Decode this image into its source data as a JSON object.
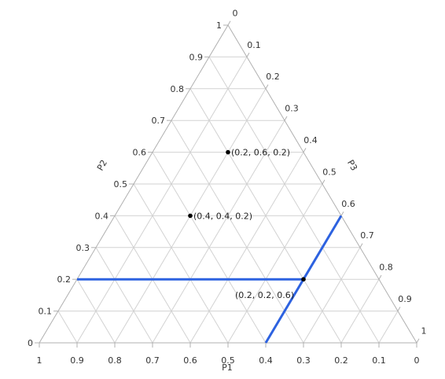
{
  "chart_data": {
    "type": "ternary",
    "axes": [
      {
        "name": "P1",
        "label": "P1",
        "ticks": [
          "1",
          "0.9",
          "0.8",
          "0.7",
          "0.6",
          "0.5",
          "0.4",
          "0.3",
          "0.2",
          "0.1",
          "0"
        ]
      },
      {
        "name": "P2",
        "label": "P2",
        "ticks": [
          "0",
          "0.1",
          "0.2",
          "0.3",
          "0.4",
          "0.5",
          "0.6",
          "0.7",
          "0.8",
          "0.9",
          "1"
        ]
      },
      {
        "name": "P3",
        "label": "P3",
        "ticks": [
          "0",
          "0.1",
          "0.2",
          "0.3",
          "0.4",
          "0.5",
          "0.6",
          "0.7",
          "0.8",
          "0.9",
          "1"
        ]
      }
    ],
    "grid": true,
    "grid_step": 0.1,
    "points": [
      {
        "p1": 0.2,
        "p2": 0.6,
        "p3": 0.2,
        "label": "(0.2, 0.6, 0.2)"
      },
      {
        "p1": 0.4,
        "p2": 0.4,
        "p3": 0.2,
        "label": "(0.4, 0.4, 0.2)"
      },
      {
        "p1": 0.2,
        "p2": 0.2,
        "p3": 0.6,
        "label": "(0.2, 0.2, 0.6)"
      }
    ],
    "highlight_point_index": 2,
    "colors": {
      "frame": "#b0b0b0",
      "grid": "#d2d2d2",
      "highlight": "#2d62e0",
      "point": "#000000",
      "text": "#333333"
    }
  }
}
